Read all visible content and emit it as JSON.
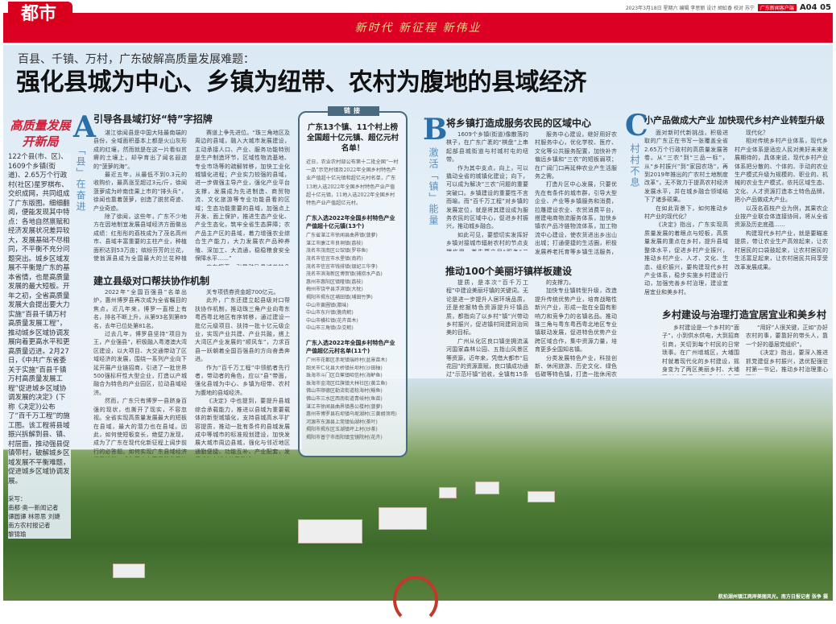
{
  "header": {
    "section": "都市",
    "slogan": "新时代 新征程 新伟业",
    "meta": "2023年3月18日 星期六 编辑 李思丽 设计 胡虹香 校对 苏宁",
    "meta_tag": "广东新闻客户端",
    "page_number": "A04 05",
    "accent_color": "#dc0024"
  },
  "title": {
    "kicker": "百县、千镇、万村，广东破解高质量发展难题：",
    "headline": "强化县城为中心、乡镇为纽带、农村为腹地的县域经济"
  },
  "sidebar": {
    "calligraphy": "高质量发展 开新局",
    "lead": "122个县(市、区)、1609个乡镇(街道)、2.65万个行政村(社区)星罗棋布、交织成网，共同组成了广东版图。细细翻阅，便能发现其中特点：各地自然禀赋和经济发展状况差异较大，发展基础不尽相同，不平衡不充分问题突出。城乡区域发展不平衡是广东的基本省情，也是高质量发展的最大短板。开年之初，全省高质量发展大会提出要大力实施“百县千镇万村高质量发展工程”，推动城乡区域协调发展向着更高水平和更高质量迈进。2月27日，《中共广东省委关于实施“百县千镇万村高质量发展工程”促进城乡区域协调发展的决定》(下称《决定》)公布了“百千万工程”的施工图。该工程将县域振兴拆解到县、镇、村层面，推动强县促镇带村，破解城乡区域发展不平衡难题，促进城乡区域协调发展。",
    "credits_label": "采写：",
    "credits": [
      "南都·奥一新闻记者",
      "谭圆谭 林思思 刘婕",
      "南方农村报记者",
      "黎锦瑜"
    ]
  },
  "section_a": {
    "letter": "A",
    "label": "「县」在奋进",
    "heading": "引导各县域打好“特”字招牌",
    "col1": [
      "湛江徐闻县是中国大陆最南端的县份，全域面积基本上都是火山灰形成的红壤，然而就是在这一片看似贫瘠的土壤上，却孕育出了闻名遐迩的“菠萝的海”。",
      "最近五年，从最低不到0.3元的收购价，最高涨至超过3元/斤，徐闻菠萝成为岭南佳果上市的“排头兵”，徐闻也靠着菠萝，创造了脱贫奇迹、产业奇迹。",
      "除了徐闻，这些年，广东不少地方在因地制宜发展县域经济方面做出成绩：红彤彤的荔枝成为了茂名高州市、县域丰富重要的主柱产业，种植面积达到53万亩；缤纷芬芳的兰花，使翁源县成为全国最大的兰花种植区，年产值超30亿元……",
      "广东各县因地理环境相异，振兴密码也各不相同，要用各取所长，宜粮则粮、宜农则农、宜工则工、宜商则商。",
      "《决定》中也明确提到，让县域在不同"
    ],
    "col2": [
      "赛道上争先进位。“珠三角地区及周边的县域，融入大城市发展建设，主动承接人口、产业、服务功能特别是生产制造环节，区域性物流基地、专业市场等的疏解转移，加快工业化城镇化进程；产业实力较强的县域，进一步做强主导产业，强化产业平台支撑，发展成为先进制造、商贸物流、文化旅游等专业功能县看的区域；生态功能重要的县域，加强点上开发、面上保护，推进生态产业化、产业生态化，筑牢全省生态屏障；农产品主产区的县域，着力增强农业综合生产能力，大力发展农产品种养殖、深加工、大流通，稳稳粮食安全保障水平……”",
      "广东探索，引导鼓励县域差特色化发展道路是大势所趋，要引导各县域打好“特”字招牌，加快探索各具特色、错位的发展，让每片土地都能找到各自富民产业的突破口，朝着专精特新的赛道进发。"
    ],
    "sub_heading": "建立县级对口帮扶协作机制",
    "col3": [
      "2022年“全国百强县”名单出炉，惠州博罗县再次成为全省瞩目的焦点。近几年来，博罗一直榜上有名，排名不断上升，从第93名到第89名，去年已位处第81名。",
      "过去几年，博罗县坚持“项目为王，产业强县”，积极融入粤港澳大湾区建设，以大项目、大交通带动了区域经济的发展，围绕一系列产业向下延开展产业链招商，引进了一批世界500强标杆性大型企业，打造以产城融合为特色的产业园区，拉动县域经济。",
      "然而，广东只有博罗一县跻身百强的现状，也撕开了现实，不容忽视。全省实现高质量发展最大的短板在县域，最大的潜力也在县域。因此，如何使短板变长，绝壁力发现，成为了广东在现代化新征程上阔步前行的必答题。如何实现广东县域经济提质增量，成为了广东高质量发展的关键命题。",
      "此次“百千万工程”，广东122个县(市、区)迅即行动，积极响应，迅速行动，聚焦积蓄本地特色，强化产业。广东今年已安排1100亿元用于保障“百千万工程”的实施，撬动此次发行的“百千万工程”相"
    ],
    "col4": [
      "关专项债券资金超700亿元。",
      "此外，广东还建立起县级对口帮扶协作机制，推动珠三角产业向粤东粤西粤北地区有序转移，通过建设一批亿元级项目、扶持一批十亿元级企业，实现产业共建、产业共融，搭上大湾区产业发展的“顺风车”，力求百县一跃朝着全国百强县的方向奋勇奔进。",
      "作为“百千万工程”中领航者先行者，带动者的角色，应以“县”带面，强化县城为中心、乡镇为纽带、农村为腹地的县域经济。",
      "《决定》中也提到，要提升县城综合承载能力，推进以县城为重要载体的新型城镇化，支持县城高水平扩容提质，推动一批有条件的县城发展成中等城市的标准规划建设，加快发展大城市周边县城，强化与邻近地区通勤便捷、功能互补、产业配套，发展成为大城市的卫星城……",
      "构建循阶之势，壮大县域经济，最关键的，以上种种，对打通城市群、国家中心城市、都市圈发展战略与乡村振兴战略之间的连接通道具有重要意义，只有县城强起来，各市各地才能强起来。"
    ]
  },
  "link_box": {
    "tag": "链接",
    "title": "广东13个镇、11个村上榜全国超十亿元镇、超亿元村名单！",
    "intro": "近日，农业农村部公布第十二批全国“一村一品”示范村镇及2022年全国乡村特色产业产值超十亿元镇和超亿元村名单，广东13地入选2022年全国乡村特色产业产值超十亿元镇，11地入选2022年全国乡村特色产业产值超亿元村。",
    "towns_heading": "广东入选2022年全国乡村特色产业产值超十亿元镇(13个)",
    "towns": [
      "广东省湛江市徐闻县曲界镇(菠萝)",
      "湛江市廉江市良垌镇(荔枝)",
      "茂名市茂南区公馆镇(罗非鱼)",
      "茂名市信宜市水堡镇(南药)",
      "茂名市信宜市钱排镇(银妃三华李)",
      "茂名市滨海新区博贺镇(捕捞水产品)",
      "惠州市惠阳区镇隆镇(荔枝)",
      "梅州市饶平县浮滨镇(大枕)",
      "揭阳市揭东区埔田镇(埔田竹笋)",
      "中山市黄圃镇(腊味)",
      "中山市东升镇(脆肉鲩)",
      "中山市横栏镇(花卉苗木)",
      "中山市三角镇(杂交鲩)"
    ],
    "villages_heading": "广东入选2022年全国乡村特色产业产值超亿元村名单(11个)",
    "villages": [
      "广州市花都区赤坭镇瑞岭村(盆景苗木)",
      "韶关市仁化县大桥镇长坝村(沙田柚)",
      "珠海市斗门区白蕉镇昭信村(海鲈鱼)",
      "珠海市金湾区红旗镇大林社区(黄立鱼)",
      "佛山市顺德区勒流街道稔海村(鳗鱼)",
      "佛山市三水区西南街道青岐村(鱼苗)",
      "湛江市徐闻县曲界镇愚公楼村(菠萝)",
      "惠州市博罗县石坝镇乌坭湖村(三黄胡须鸡)",
      "河源市东源县上莞镇仙湖村(茶叶)",
      "揭阳市揭东区玉湖镇坪上村(炒茶)",
      "揭阳市普宁市南阳镇宝镜院村(花卉)"
    ]
  },
  "section_b": {
    "letter": "B",
    "label": "激活「镇」能量",
    "heading": "将乡镇打造成服务农民的区域中心",
    "col1": [
      "1609个乡镇(街道)像散落的棋子，在广东广袤的“棋盘”上串起部县城街道与村城村屯的纽带。",
      "作为其中支点，向上，可以撬动全省的城镇化建设；向下，可以成为解决“三农”问题的重要突破口。乡镇建设的重要性不言而喻。而“百千万工程”对乡镇的发展定位，就是将其建设成为服务农民的区域中心，促进乡村振兴，推动城乡融合。",
      "如此可见，要想切实发挥好乡镇对接城市辐射农村的节点支撑作用，首先要立足“服务”二字。具体而言，即加强乡镇的综合服务能力，使之成为乡村的经济中心、治理中心、服务中心，把向上升为服务农民的区域中心。",
      "这也正是《决定》强调的要点之一。《决定》明确，要打造完善的服务圈，加强政务"
    ],
    "col2": [
      "服务中心建设，继好用好农村服务中心，优化学校、医疗、文化等公共服务配置，加快补齐偏远乡镇和“三农”的短板弱项；在广阔门口再延伸农业产生活服务之需。",
      "打造片区中心发展，只要优先在有条件的城市群，引导大型企业、产业等乡镇服务和消费，拉雕建设农业、农贸消费平台，搭建电商物流服务体系，加快乡镇农产品冷链物流体系，加工物流中心建设，使农货进出乡出山出城；打通便捷的生活圈，积极发展养老托育等乡镇生活服务，建设小公园、小广场，小体育等公共活动空间，推动镇村生活一体融合，各有精彩。",
      "民乡富、民业富、生活富，实现乡镇美，不同的关键是谁在干以一个镇一村，让乡镇服务各个乡村的农民生产生活，推进乡村全面发展，加快乡村振兴的支撑力。"
    ],
    "sub_heading": "推动100个美丽圩镇样板建设",
    "col3": [
      "提质，是本次“百千万工程”中建设美丽圩镇的关键词。无论是进一步提升人居环境品质，还是挖掘特色资源提升圩镇品质，都指向了以乡村“镇”兴带动乡村振兴，促进镇村同建同治同美的目标。",
      "广州从化区良口镇坐拥流溪河国家森林公园、五指山风景区等资源，近年来，凭借大都市“后花园”的资源禀赋，良口镇成功通过“示范圩镇”验收，全镇有15条村被评选为市级美丽乡村……诸多成功案例表明，以建设美丽圩镇为抓手，以镇带村推进乡村振兴发展"
    ],
    "col4": [
      "的支撑力。",
      "加快专业镇转型升级，改造提升传统优势产业，培育战略性新兴产业，形成一批在全国有影响力和竞争力的名镇名品。推动珠三角与粤东粤西粤北地区专业镇联动发展，促进特色优势产业跨区域合作，集中资源力量，培育更多全国知名镇。",
      "分类发展特色产业，科技创新、休闲旅游、历史文化、绿色低碳等特色镇，打造一批休闲农业与乡村旅游示范镇，推动一批古镇古埠古渡焕发新时代光彩。"
    ]
  },
  "section_c": {
    "letter": "C",
    "label": "村村不息",
    "heading": "小产品做成大产业 加快现代乡村产业转型升级",
    "col1": [
      "面对新时代新挑战，积极进取的广东正在书写一张覆盖全省2.65万个行政村的高质量发展答卷。从“三农”到“三品一标”，从“乡村振兴”到“家园农场”，再到2019年推出的广农村土地制度改革”，无不致力于提高农村经济发展水平，并在城乡融合领域结下了诸多硕果。",
      "在如此背景下，如何推动乡村产业的现代化？",
      "《决定》指出，广东实现高质量发展的着眼点与短板，高质量发展的重点在乡村，提升县域整体水平，促进乡村产业振兴，推动乡村产业、人才、文化、生态、组织振兴，要构建现代乡村产业体系，稳步实施乡村建设行动，加强完善乡村治理，建设宜居宜业和美乡村。",
      "新时代，如何加快推进农业农村"
    ],
    "col2": [
      "现代化？",
      "相对传统乡村产业体系，现代乡村产业体系是适应人民对美好未来发展期待的，具体来说，现代乡村产业体系把分散的、个体的、手动的农业生产模式升级为规模的、职业的、机械的农业生产模式，依托区域生态、文化、人才资源打造本土特色品牌，把小产品做成大产业。",
      "以茂名荔枝产业为例，其果农企业按产业联合体连接协同，将从全省资源及历史底蕴……",
      "构建现代乡村产业，就是要瞄准提质，带让农业生产高效起来，让农村居民的口袋鼓起来，让农村居民的生活富足起来，让农村居民共同享受改革发展成果。"
    ],
    "sub_heading": "乡村建设与治理打造宜居宜业和美乡村",
    "col3": [
      "乡村建设是一个乡村的“面子”，小到供水供电，大到招商引商，关切到每个村民的日常琐事。在广州增城区，大埔围村就着现代化的乡村建设，摇身变为了两区美丽乡村、大埔围村农家乐以及多个特色项目……"
    ],
    "col4": [
      "“用好”人很关键，正如“办好农村的事，要靠好的带头人，靠一个好的基层党组织”。",
      "《决定》指出，要深入推进抓党建促乡村振兴，选优配强驻村第一书记，推动乡村治理重心下移……"
    ]
  },
  "photo": {
    "caption": "航拍湖州镇江两岸美丽风光。南方日报记者 张争 摄"
  }
}
